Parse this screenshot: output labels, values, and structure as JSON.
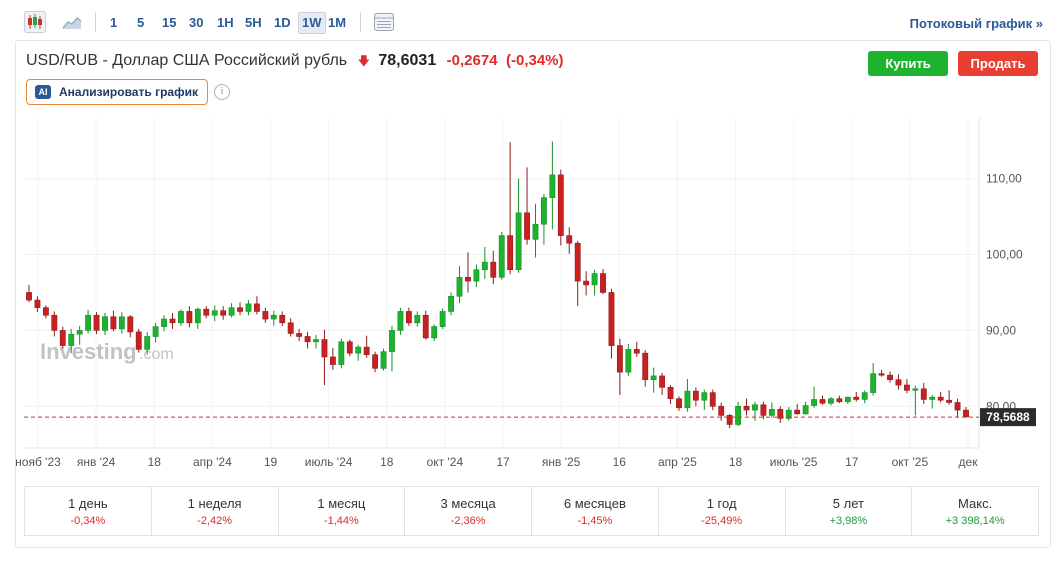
{
  "toolbar": {
    "timeframes": [
      "1",
      "5",
      "15",
      "30",
      "1H",
      "5H",
      "1D",
      "1W",
      "1M"
    ],
    "active_timeframe": "1W",
    "stream_link": "Потоковый график »"
  },
  "header": {
    "instrument": "USD/RUB - Доллар США Российский рубль",
    "price": "78,6031",
    "change": "-0,2674",
    "change_pct": "(-0,34%)",
    "buy_label": "Купить",
    "sell_label": "Продать",
    "ai_badge": "AI",
    "ai_button": "Анализировать график",
    "info_glyph": "i"
  },
  "watermark": {
    "brand": "Investing",
    "suffix": ".com"
  },
  "colors": {
    "up": "#1db32e",
    "down": "#cc2020",
    "accent": "#2a5b96",
    "current_line": "#c0392b"
  },
  "chart_data": {
    "type": "candlestick",
    "title": "",
    "xlabel": "",
    "ylabel": "",
    "ylim": [
      74.5,
      118
    ],
    "y_ticks": [
      80,
      90,
      100,
      110
    ],
    "y_tick_labels": [
      "80,00",
      "90,00",
      "100,00",
      "110,00"
    ],
    "x_tick_labels": [
      "нояб '23",
      "янв '24",
      "18",
      "апр '24",
      "19",
      "июль '24",
      "18",
      "окт '24",
      "17",
      "янв '25",
      "16",
      "апр '25",
      "18",
      "июль '25",
      "17",
      "окт '25",
      "дек"
    ],
    "last_value_label": "78,5688",
    "last_value": 78.5688,
    "grid": true,
    "candles": [
      [
        95.0,
        96.0,
        93.7,
        94.0
      ],
      [
        94.0,
        94.5,
        92.4,
        93.0
      ],
      [
        93.0,
        93.3,
        91.6,
        92.0
      ],
      [
        92.0,
        92.5,
        89.2,
        90.0
      ],
      [
        90.0,
        90.5,
        87.6,
        88.0
      ],
      [
        88.0,
        90.2,
        87.0,
        89.5
      ],
      [
        89.5,
        90.6,
        88.1,
        90.0
      ],
      [
        90.0,
        92.7,
        89.6,
        92.0
      ],
      [
        92.0,
        92.4,
        89.5,
        90.0
      ],
      [
        90.0,
        92.3,
        89.4,
        91.8
      ],
      [
        91.8,
        92.6,
        89.9,
        90.2
      ],
      [
        90.2,
        92.4,
        89.6,
        91.8
      ],
      [
        91.8,
        92.0,
        89.1,
        89.8
      ],
      [
        89.8,
        90.2,
        87.1,
        87.5
      ],
      [
        87.5,
        89.8,
        86.8,
        89.2
      ],
      [
        89.2,
        91.0,
        88.4,
        90.5
      ],
      [
        90.5,
        92.0,
        89.9,
        91.5
      ],
      [
        91.5,
        92.3,
        90.2,
        91.0
      ],
      [
        91.0,
        92.8,
        90.6,
        92.5
      ],
      [
        92.5,
        93.2,
        90.4,
        91.0
      ],
      [
        91.0,
        93.0,
        90.2,
        92.8
      ],
      [
        92.8,
        93.2,
        91.6,
        92.0
      ],
      [
        92.0,
        93.3,
        91.2,
        92.6
      ],
      [
        92.6,
        93.2,
        91.4,
        92.0
      ],
      [
        92.0,
        93.6,
        91.7,
        93.0
      ],
      [
        93.0,
        93.7,
        92.0,
        92.5
      ],
      [
        92.5,
        94.0,
        92.0,
        93.5
      ],
      [
        93.5,
        94.5,
        92.1,
        92.5
      ],
      [
        92.5,
        93.0,
        91.0,
        91.5
      ],
      [
        91.5,
        92.6,
        90.6,
        92.0
      ],
      [
        92.0,
        92.5,
        90.6,
        91.0
      ],
      [
        91.0,
        91.6,
        89.2,
        89.6
      ],
      [
        89.6,
        90.2,
        88.6,
        89.2
      ],
      [
        89.2,
        89.8,
        87.6,
        88.5
      ],
      [
        88.5,
        89.4,
        87.6,
        88.8
      ],
      [
        88.8,
        90.1,
        82.8,
        86.5
      ],
      [
        86.5,
        87.7,
        84.8,
        85.5
      ],
      [
        85.5,
        88.9,
        85.0,
        88.5
      ],
      [
        88.5,
        88.8,
        86.6,
        87.0
      ],
      [
        87.0,
        88.1,
        86.0,
        87.8
      ],
      [
        87.8,
        89.3,
        86.4,
        86.8
      ],
      [
        86.8,
        87.2,
        84.5,
        85.0
      ],
      [
        85.0,
        87.6,
        84.7,
        87.2
      ],
      [
        87.2,
        90.6,
        84.6,
        90.0
      ],
      [
        90.0,
        93.0,
        89.4,
        92.5
      ],
      [
        92.5,
        93.0,
        90.6,
        91.0
      ],
      [
        91.0,
        92.5,
        90.5,
        92.0
      ],
      [
        92.0,
        92.6,
        88.8,
        89.0
      ],
      [
        89.0,
        90.8,
        88.6,
        90.5
      ],
      [
        90.5,
        92.9,
        90.2,
        92.5
      ],
      [
        92.5,
        95.0,
        92.0,
        94.5
      ],
      [
        94.5,
        98.5,
        93.6,
        97.0
      ],
      [
        97.0,
        100.3,
        95.0,
        96.5
      ],
      [
        96.5,
        98.7,
        95.7,
        98.0
      ],
      [
        98.0,
        101.0,
        96.8,
        99.0
      ],
      [
        99.0,
        100.5,
        96.1,
        97.0
      ],
      [
        97.0,
        103.0,
        96.7,
        102.5
      ],
      [
        102.5,
        114.8,
        97.4,
        98.0
      ],
      [
        98.0,
        110.0,
        97.6,
        105.5
      ],
      [
        105.5,
        111.5,
        101.3,
        102.0
      ],
      [
        102.0,
        106.7,
        99.6,
        104.0
      ],
      [
        104.0,
        108.0,
        101.3,
        107.5
      ],
      [
        107.5,
        114.9,
        103.3,
        110.5
      ],
      [
        110.5,
        111.2,
        101.2,
        102.5
      ],
      [
        102.5,
        103.6,
        100.1,
        101.5
      ],
      [
        101.5,
        101.8,
        93.2,
        96.5
      ],
      [
        96.5,
        97.8,
        94.6,
        96.0
      ],
      [
        96.0,
        98.0,
        94.6,
        97.5
      ],
      [
        97.5,
        98.1,
        94.8,
        95.0
      ],
      [
        95.0,
        95.5,
        86.3,
        88.0
      ],
      [
        88.0,
        88.9,
        81.5,
        84.5
      ],
      [
        84.5,
        88.2,
        84.0,
        87.5
      ],
      [
        87.5,
        88.5,
        86.5,
        87.0
      ],
      [
        87.0,
        87.4,
        82.6,
        83.5
      ],
      [
        83.5,
        85.1,
        81.8,
        84.0
      ],
      [
        84.0,
        84.4,
        81.5,
        82.5
      ],
      [
        82.5,
        82.8,
        80.3,
        81.0
      ],
      [
        81.0,
        81.3,
        79.4,
        79.8
      ],
      [
        79.8,
        83.6,
        79.3,
        82.0
      ],
      [
        82.0,
        82.5,
        80.0,
        80.8
      ],
      [
        80.8,
        82.2,
        79.5,
        81.8
      ],
      [
        81.8,
        82.2,
        79.5,
        80.0
      ],
      [
        80.0,
        80.5,
        78.1,
        78.8
      ],
      [
        78.8,
        79.0,
        77.1,
        77.6
      ],
      [
        77.6,
        80.6,
        77.4,
        80.0
      ],
      [
        80.0,
        81.0,
        78.8,
        79.5
      ],
      [
        79.5,
        80.6,
        78.1,
        80.2
      ],
      [
        80.2,
        80.6,
        78.3,
        78.8
      ],
      [
        78.8,
        80.5,
        78.5,
        79.6
      ],
      [
        79.6,
        80.0,
        77.8,
        78.4
      ],
      [
        78.4,
        79.9,
        78.1,
        79.5
      ],
      [
        79.5,
        80.3,
        78.9,
        79.0
      ],
      [
        79.0,
        80.6,
        78.9,
        80.1
      ],
      [
        80.1,
        82.6,
        79.8,
        80.9
      ],
      [
        80.9,
        81.4,
        80.2,
        80.4
      ],
      [
        80.4,
        81.2,
        80.1,
        81.0
      ],
      [
        81.0,
        81.4,
        80.4,
        80.6
      ],
      [
        80.6,
        81.3,
        80.3,
        81.2
      ],
      [
        81.2,
        81.9,
        80.6,
        80.9
      ],
      [
        80.9,
        82.1,
        80.4,
        81.8
      ],
      [
        81.8,
        85.7,
        81.4,
        84.3
      ],
      [
        84.3,
        84.8,
        83.9,
        84.1
      ],
      [
        84.1,
        84.6,
        83.1,
        83.5
      ],
      [
        83.5,
        84.2,
        82.2,
        82.8
      ],
      [
        82.8,
        83.6,
        81.7,
        82.1
      ],
      [
        82.1,
        82.7,
        78.8,
        82.3
      ],
      [
        82.3,
        83.1,
        80.3,
        80.9
      ],
      [
        80.9,
        81.5,
        79.7,
        81.2
      ],
      [
        81.2,
        81.9,
        80.5,
        80.8
      ],
      [
        80.8,
        82.1,
        80.2,
        80.5
      ],
      [
        80.5,
        81.0,
        78.5,
        79.5
      ],
      [
        79.5,
        79.9,
        78.5,
        78.6
      ]
    ]
  },
  "performance": [
    {
      "label": "1 день",
      "value": "-0,34%",
      "dir": "neg"
    },
    {
      "label": "1 неделя",
      "value": "-2,42%",
      "dir": "neg"
    },
    {
      "label": "1 месяц",
      "value": "-1,44%",
      "dir": "neg"
    },
    {
      "label": "3 месяца",
      "value": "-2,36%",
      "dir": "neg"
    },
    {
      "label": "6 месяцев",
      "value": "-1,45%",
      "dir": "neg"
    },
    {
      "label": "1 год",
      "value": "-25,49%",
      "dir": "neg"
    },
    {
      "label": "5 лет",
      "value": "+3,98%",
      "dir": "pos"
    },
    {
      "label": "Макс.",
      "value": "+3 398,14%",
      "dir": "pos"
    }
  ]
}
